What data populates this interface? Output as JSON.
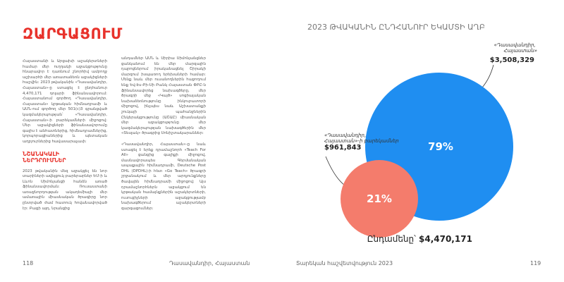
{
  "left_page": {
    "title": "ԶԱՐԳԱՑՈՒՄ",
    "column1": {
      "paragraph1": "Հայաստանի և Արցախի աշակերտների համար մեր ուղղակի աջակցությունը հնարավոր է դառնում շնորհիվ ամբողջ աշխարհի մեր առատաձեռն աջակիցների հաշվին: 2023 թվականին «Դասավանդիր, Հայաստան»-ը ստացել է ընդհանուր 4,470,171 դոլարի ֆինանսավորում: Հայաստանում գործող «Դասավանդիր, Հայաստան» կրթական հիմնադրամի և ԱՄՆ-ում գործող մեր 501(c)3 գրանցված կազմակերպության՝ «Դասավանդիր, Հայաստան»-ի բարեկամների միջոցով: Մեր աջակիցների ֆինանսավորումը գալիս է անհատներից, հիմնադրամներից, կորպորացիաներից և պետական աղբյուրներից հավասարաչափ:",
      "subheading": "ՆՇԱՆԱԿԱԼԻ ՆԵՐԴՐՈՒՄՆԵՐ",
      "paragraph2": "2023 թվականին մեզ աջակցել են նոր տարիների ավելցուկ բարերարներ ԵՄ-ի և Լևոն Սիմոնյանցի հանձն առած ֆինանսավորման: Ռուսաստանի առաջնորդության ակադեմիայի մեր ամառային միասնական ծրագիրը նոր ընտրված ժամ հատուկ հովանավորված էր: Բացի այդ, նրանցից"
    },
    "column2": {
      "paragraph1": "անդամներ ԱՄՆ և Սիրիա Սիմոնյանցներ ցանկանում են մեր մարզային դպրոցներում իրականացնել Շիրակի մարզում իսպառող երեխաների համար: Մենք նաև մեր ուսանողներին հաջողում ենք Եվ-Էս-Բի-Սի Բանկ Հայաստան ՓԲԸ-ն ֆինանսավորեց նախագծերը, մեր ծրագրի մեջ «Կայծ» սոցիալական նախաձեռնությունը ինկուբատորի միջոցով, ինչպես նաև Աշխատանքի շուկայի պահանջներին Ընկերակցությունը (ԱՇԱԸ) միասնական մեր աջակցությունը մեր կազմակերպության նախագծերին մեր «Տեսլակ» ծրագրից Սոնիշտակարաններ:",
      "paragraph2": "«Դասավանդիր, Հայաստան»-ը նաև ստացել է երեք դրամաշնորհ «Teach For All» ցանցից գալիքի միջոցով, մասնավորապես Գերմանական ապաքային հիմնադրամի, Deutsche Post DHL (DPDHL)-ի հետ «Go Teach» ծրագրի շրջանակում և մեր արդյունքները ծավալեն հիմնադրամի միջոցով: Այս դրամաշնորհներն աջակցում են կրթական համայնքներին աշակերտների, ուսուցիչների աջակցությամբ նախագծերում աշակերտների զարգացումներ:"
    },
    "page_number": "118",
    "footer": "Դասավանդիր, Հայաստան"
  },
  "right_page": {
    "page_number": "119",
    "footer": "Տարեկան հաշվետվություն 2023"
  },
  "chart_data": {
    "type": "bubble",
    "title": "2023 ԹՎԱԿԱՆԻՆ ԸՆԴՀԱՆՈՒՐ ԵԿԱՄՏԻ ԱՂԲ",
    "categories": [
      "«Դասավանդիր, Հայաստան»",
      "«Դասավանդիր, Հայաստան»-ի բարեկամներ"
    ],
    "values": [
      3508329,
      961843
    ],
    "value_labels": [
      "$3,508,329",
      "$961,843"
    ],
    "shares": [
      79,
      21
    ],
    "share_labels": [
      "79%",
      "21%"
    ],
    "colors": [
      "#1f8ef1",
      "#f47c6c"
    ],
    "total_label": "Ընդամենը՝",
    "total": 4470171,
    "total_value_label": "$4,470,171"
  }
}
